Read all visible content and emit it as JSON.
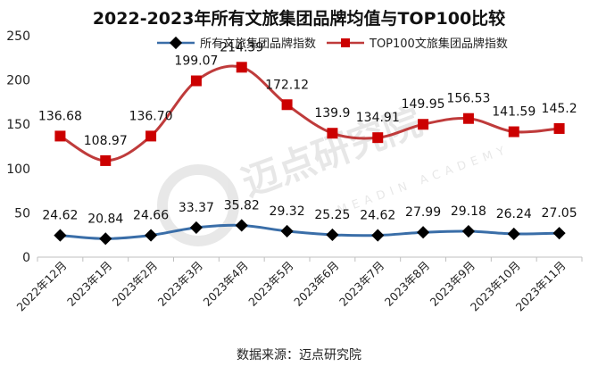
{
  "chart_data": {
    "type": "line",
    "title": "2022-2023年所有文旅集团品牌均值与TOP100比较",
    "categories": [
      "2022年12月",
      "2023年1月",
      "2023年2月",
      "2023年3月",
      "2023年4月",
      "2023年5月",
      "2023年6月",
      "2023年7月",
      "2023年8月",
      "2023年9月",
      "2023年10月",
      "2023年11月"
    ],
    "series": [
      {
        "name": "所有文旅集团品牌指数",
        "values": [
          24.62,
          20.84,
          24.66,
          33.37,
          35.82,
          29.32,
          25.25,
          24.62,
          27.99,
          29.18,
          26.24,
          27.05
        ],
        "labels": [
          "24.62",
          "20.84",
          "24.66",
          "33.37",
          "35.82",
          "29.32",
          "25.25",
          "24.62",
          "27.99",
          "29.18",
          "26.24",
          "27.05"
        ],
        "color": "#3a6ea8",
        "marker": "diamond",
        "marker_color": "#000000"
      },
      {
        "name": "TOP100文旅集团品牌指数",
        "values": [
          136.68,
          108.97,
          136.7,
          199.07,
          214.39,
          172.12,
          139.9,
          134.91,
          149.95,
          156.53,
          141.59,
          145.2
        ],
        "labels": [
          "136.68",
          "108.97",
          "136.70",
          "199.07",
          "214.39",
          "172.12",
          "139.9",
          "134.91",
          "149.95",
          "156.53",
          "141.59",
          "145.2"
        ],
        "color": "#bf3b3b",
        "marker": "square",
        "marker_color": "#cc0000"
      }
    ],
    "ylim": [
      0,
      250
    ],
    "yticks": [
      0,
      50,
      100,
      150,
      200,
      250
    ],
    "grid": false,
    "legend": "top",
    "source": "数据来源：迈点研究院",
    "watermark": {
      "name": "迈点研究院",
      "subtitle": "MEADIN ACADEMY"
    }
  }
}
